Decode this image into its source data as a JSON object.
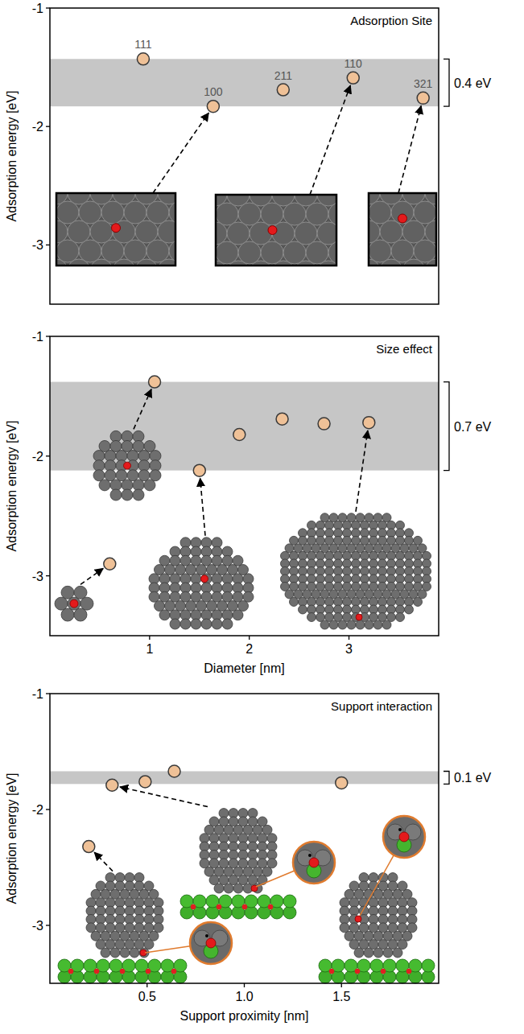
{
  "chart_data": [
    {
      "type": "scatter",
      "title": "Adsorption Site",
      "ylabel": "Adsorption energy [eV]",
      "categories": [
        "111",
        "100",
        "211",
        "110",
        "321"
      ],
      "values": [
        -1.43,
        -1.83,
        -1.69,
        -1.59,
        -1.76
      ],
      "color": "#efc197",
      "marker": "circle",
      "ylim": [
        -1,
        -3.5
      ],
      "yticks": [
        -1,
        -2,
        -3
      ],
      "tick_labels": "y",
      "grid": false,
      "annotations": [
        {
          "text": "0.4 eV",
          "from": -1.83,
          "to": -1.43
        }
      ]
    },
    {
      "type": "scatter",
      "title": "Size effect",
      "xlabel": "Diameter [nm]",
      "ylabel": "Adsorption energy [eV]",
      "x": [
        0.6,
        1.05,
        1.5,
        1.9,
        2.33,
        2.75,
        3.2
      ],
      "values": [
        -2.9,
        -1.38,
        -2.12,
        -1.82,
        -1.69,
        -1.73,
        -1.72
      ],
      "color": "#efc197",
      "marker": "circle",
      "xlim": [
        0,
        3.9
      ],
      "xticks": [
        1,
        2,
        3
      ],
      "ylim": [
        -1,
        -3.5
      ],
      "yticks": [
        -1,
        -2,
        -3
      ],
      "grid": false,
      "annotations": [
        {
          "text": "0.7 eV",
          "from": -2.12,
          "to": -1.38
        }
      ]
    },
    {
      "type": "scatter",
      "title": "Support interaction",
      "xlabel": "Support proximity [nm]",
      "ylabel": "Adsorption energy [eV]",
      "x": [
        0.2,
        0.32,
        0.49,
        0.64,
        1.5
      ],
      "values": [
        -2.32,
        -1.79,
        -1.76,
        -1.67,
        -1.77
      ],
      "color": "#efc197",
      "marker": "circle",
      "xlim": [
        0,
        2.0
      ],
      "xticks": [
        0.5,
        {
          "value": 1,
          "label": "1.0"
        },
        1.5
      ],
      "ylim": [
        -1,
        -3.5
      ],
      "yticks": [
        -1,
        -2,
        -3
      ],
      "grid": false,
      "annotations": [
        {
          "text": "0.1 eV",
          "from": -1.78,
          "to": -1.67
        }
      ]
    }
  ]
}
